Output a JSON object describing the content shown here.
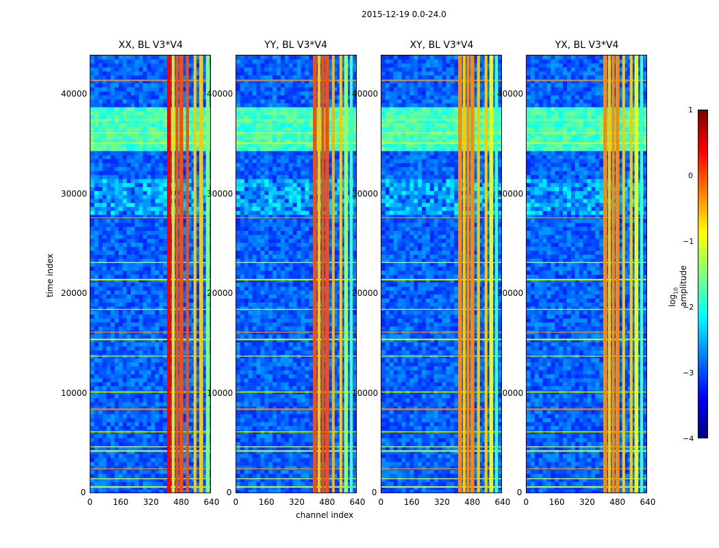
{
  "suptitle": "2015-12-19 0.0-24.0",
  "colors": {
    "jet": [
      "#00007f",
      "#0000ff",
      "#007fff",
      "#00ffff",
      "#7fff7f",
      "#ffff00",
      "#ff7f00",
      "#ff0000",
      "#7f0000"
    ]
  },
  "chart_data": [
    {
      "type": "heatmap",
      "title": "XX, BL V3*V4",
      "xlabel": "",
      "ylabel": "time index",
      "x_ticks": [
        "0",
        "160",
        "320",
        "480",
        "640"
      ],
      "y_ticks": [
        "0",
        "10000",
        "20000",
        "30000",
        "40000"
      ],
      "xlim": [
        0,
        640
      ],
      "ylim": [
        0,
        44000
      ],
      "z_range": [
        -4,
        1
      ],
      "rfi_channel_bands": [
        [
          405,
          425,
          0.4
        ],
        [
          430,
          445,
          -0.7
        ],
        [
          450,
          465,
          0.0
        ],
        [
          470,
          490,
          0.0
        ],
        [
          505,
          520,
          0.0
        ],
        [
          545,
          560,
          -0.6
        ],
        [
          575,
          595,
          -0.6
        ],
        [
          610,
          630,
          -1.5
        ]
      ],
      "rfi_time_lines": [
        41500,
        37500,
        36200,
        35200,
        27700,
        23200,
        21500,
        18500,
        16200,
        15500,
        13800,
        10200,
        8500,
        6200,
        4700,
        4300,
        2500,
        1500,
        700
      ]
    },
    {
      "type": "heatmap",
      "title": "YY, BL V3*V4",
      "xlabel": "channel index",
      "ylabel": "",
      "x_ticks": [
        "0",
        "160",
        "320",
        "480",
        "640"
      ],
      "y_ticks": [
        "0",
        "10000",
        "20000",
        "30000",
        "40000"
      ],
      "xlim": [
        0,
        640
      ],
      "ylim": [
        0,
        44000
      ],
      "z_range": [
        -4,
        1
      ],
      "rfi_channel_bands": [
        [
          405,
          425,
          0.0
        ],
        [
          430,
          445,
          -0.6
        ],
        [
          450,
          465,
          0.0
        ],
        [
          470,
          490,
          0.0
        ],
        [
          505,
          520,
          -0.5
        ],
        [
          545,
          560,
          -0.6
        ],
        [
          570,
          590,
          -1.4
        ],
        [
          600,
          615,
          -1.8
        ]
      ],
      "rfi_time_lines": [
        41500,
        37500,
        36200,
        35200,
        27700,
        23200,
        21500,
        18500,
        16200,
        15500,
        13800,
        10200,
        8500,
        6200,
        4700,
        4300,
        2500,
        1500,
        700
      ]
    },
    {
      "type": "heatmap",
      "title": "XY, BL V3*V4",
      "xlabel": "",
      "ylabel": "",
      "x_ticks": [
        "0",
        "160",
        "320",
        "480",
        "640"
      ],
      "y_ticks": [
        "0",
        "10000",
        "20000",
        "30000",
        "40000"
      ],
      "xlim": [
        0,
        640
      ],
      "ylim": [
        0,
        44000
      ],
      "z_range": [
        -4,
        1
      ],
      "rfi_channel_bands": [
        [
          405,
          425,
          -0.3
        ],
        [
          430,
          445,
          -0.6
        ],
        [
          450,
          465,
          -0.3
        ],
        [
          470,
          490,
          -0.3
        ],
        [
          505,
          520,
          -0.6
        ],
        [
          545,
          560,
          -0.6
        ],
        [
          570,
          590,
          -1.0
        ],
        [
          600,
          615,
          -1.8
        ]
      ],
      "rfi_time_lines": [
        41500,
        37500,
        36200,
        35200,
        27700,
        23200,
        21500,
        18500,
        16200,
        15500,
        13800,
        10200,
        8500,
        6200,
        4700,
        4300,
        2500,
        1500,
        700
      ]
    },
    {
      "type": "heatmap",
      "title": "YX, BL V3*V4",
      "xlabel": "",
      "ylabel": "",
      "x_ticks": [
        "0",
        "160",
        "320",
        "480",
        "640"
      ],
      "y_ticks": [
        "0",
        "10000",
        "20000",
        "30000",
        "40000"
      ],
      "xlim": [
        0,
        640
      ],
      "ylim": [
        0,
        44000
      ],
      "z_range": [
        -4,
        1
      ],
      "rfi_channel_bands": [
        [
          405,
          425,
          -0.3
        ],
        [
          430,
          445,
          -0.6
        ],
        [
          450,
          465,
          -0.3
        ],
        [
          470,
          490,
          -0.3
        ],
        [
          505,
          520,
          -0.6
        ],
        [
          545,
          560,
          -0.6
        ],
        [
          570,
          590,
          -1.0
        ],
        [
          600,
          615,
          -1.8
        ]
      ],
      "rfi_time_lines": [
        41500,
        37500,
        36200,
        35200,
        27700,
        23200,
        21500,
        18500,
        16200,
        15500,
        13800,
        10200,
        8500,
        6200,
        4700,
        4300,
        2500,
        1500,
        700
      ]
    }
  ],
  "colorbar": {
    "label": "log",
    "label_sub": "10",
    "label_rest": " amplitude",
    "ticks": [
      "1",
      "0",
      "−1",
      "−2",
      "−3",
      "−4"
    ],
    "range": [
      -4,
      1
    ]
  }
}
